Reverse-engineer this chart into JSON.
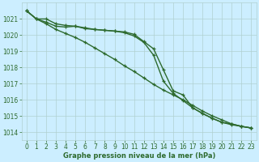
{
  "x": [
    0,
    1,
    2,
    3,
    4,
    5,
    6,
    7,
    8,
    9,
    10,
    11,
    12,
    13,
    14,
    15,
    16,
    17,
    18,
    19,
    20,
    21,
    22,
    23
  ],
  "line1": [
    1021.5,
    1021.0,
    1021.0,
    1020.7,
    1020.6,
    1020.55,
    1020.4,
    1020.35,
    1020.3,
    1020.25,
    1020.2,
    1020.05,
    1019.6,
    1019.15,
    1017.85,
    1016.55,
    1016.3,
    1015.5,
    1015.15,
    1014.85,
    1014.6,
    1014.45,
    1014.35,
    1014.25
  ],
  "line2": [
    1021.5,
    1021.0,
    1020.8,
    1020.55,
    1020.5,
    1020.55,
    1020.45,
    1020.35,
    1020.3,
    1020.25,
    1020.15,
    1019.95,
    1019.55,
    1018.75,
    1017.15,
    1016.4,
    1015.95,
    1015.5,
    1015.15,
    1014.85,
    1014.6,
    1014.5,
    1014.35,
    1014.25
  ],
  "line3": [
    1021.5,
    1021.0,
    1020.7,
    1020.35,
    1020.1,
    1019.85,
    1019.55,
    1019.2,
    1018.85,
    1018.5,
    1018.1,
    1017.75,
    1017.35,
    1016.95,
    1016.6,
    1016.3,
    1016.0,
    1015.65,
    1015.3,
    1015.0,
    1014.75,
    1014.5,
    1014.35,
    1014.25
  ],
  "color": "#2d6a2d",
  "bg_color": "#cceeff",
  "grid_color": "#b0d0d0",
  "ylim": [
    1013.5,
    1022.0
  ],
  "yticks": [
    1014,
    1015,
    1016,
    1017,
    1018,
    1019,
    1020,
    1021
  ],
  "xticks": [
    0,
    1,
    2,
    3,
    4,
    5,
    6,
    7,
    8,
    9,
    10,
    11,
    12,
    13,
    14,
    15,
    16,
    17,
    18,
    19,
    20,
    21,
    22,
    23
  ],
  "xlabel": "Graphe pression niveau de la mer (hPa)",
  "marker": "+",
  "linewidth": 1.0,
  "markersize": 3.5,
  "tick_fontsize": 5.5,
  "xlabel_fontsize": 6.0
}
